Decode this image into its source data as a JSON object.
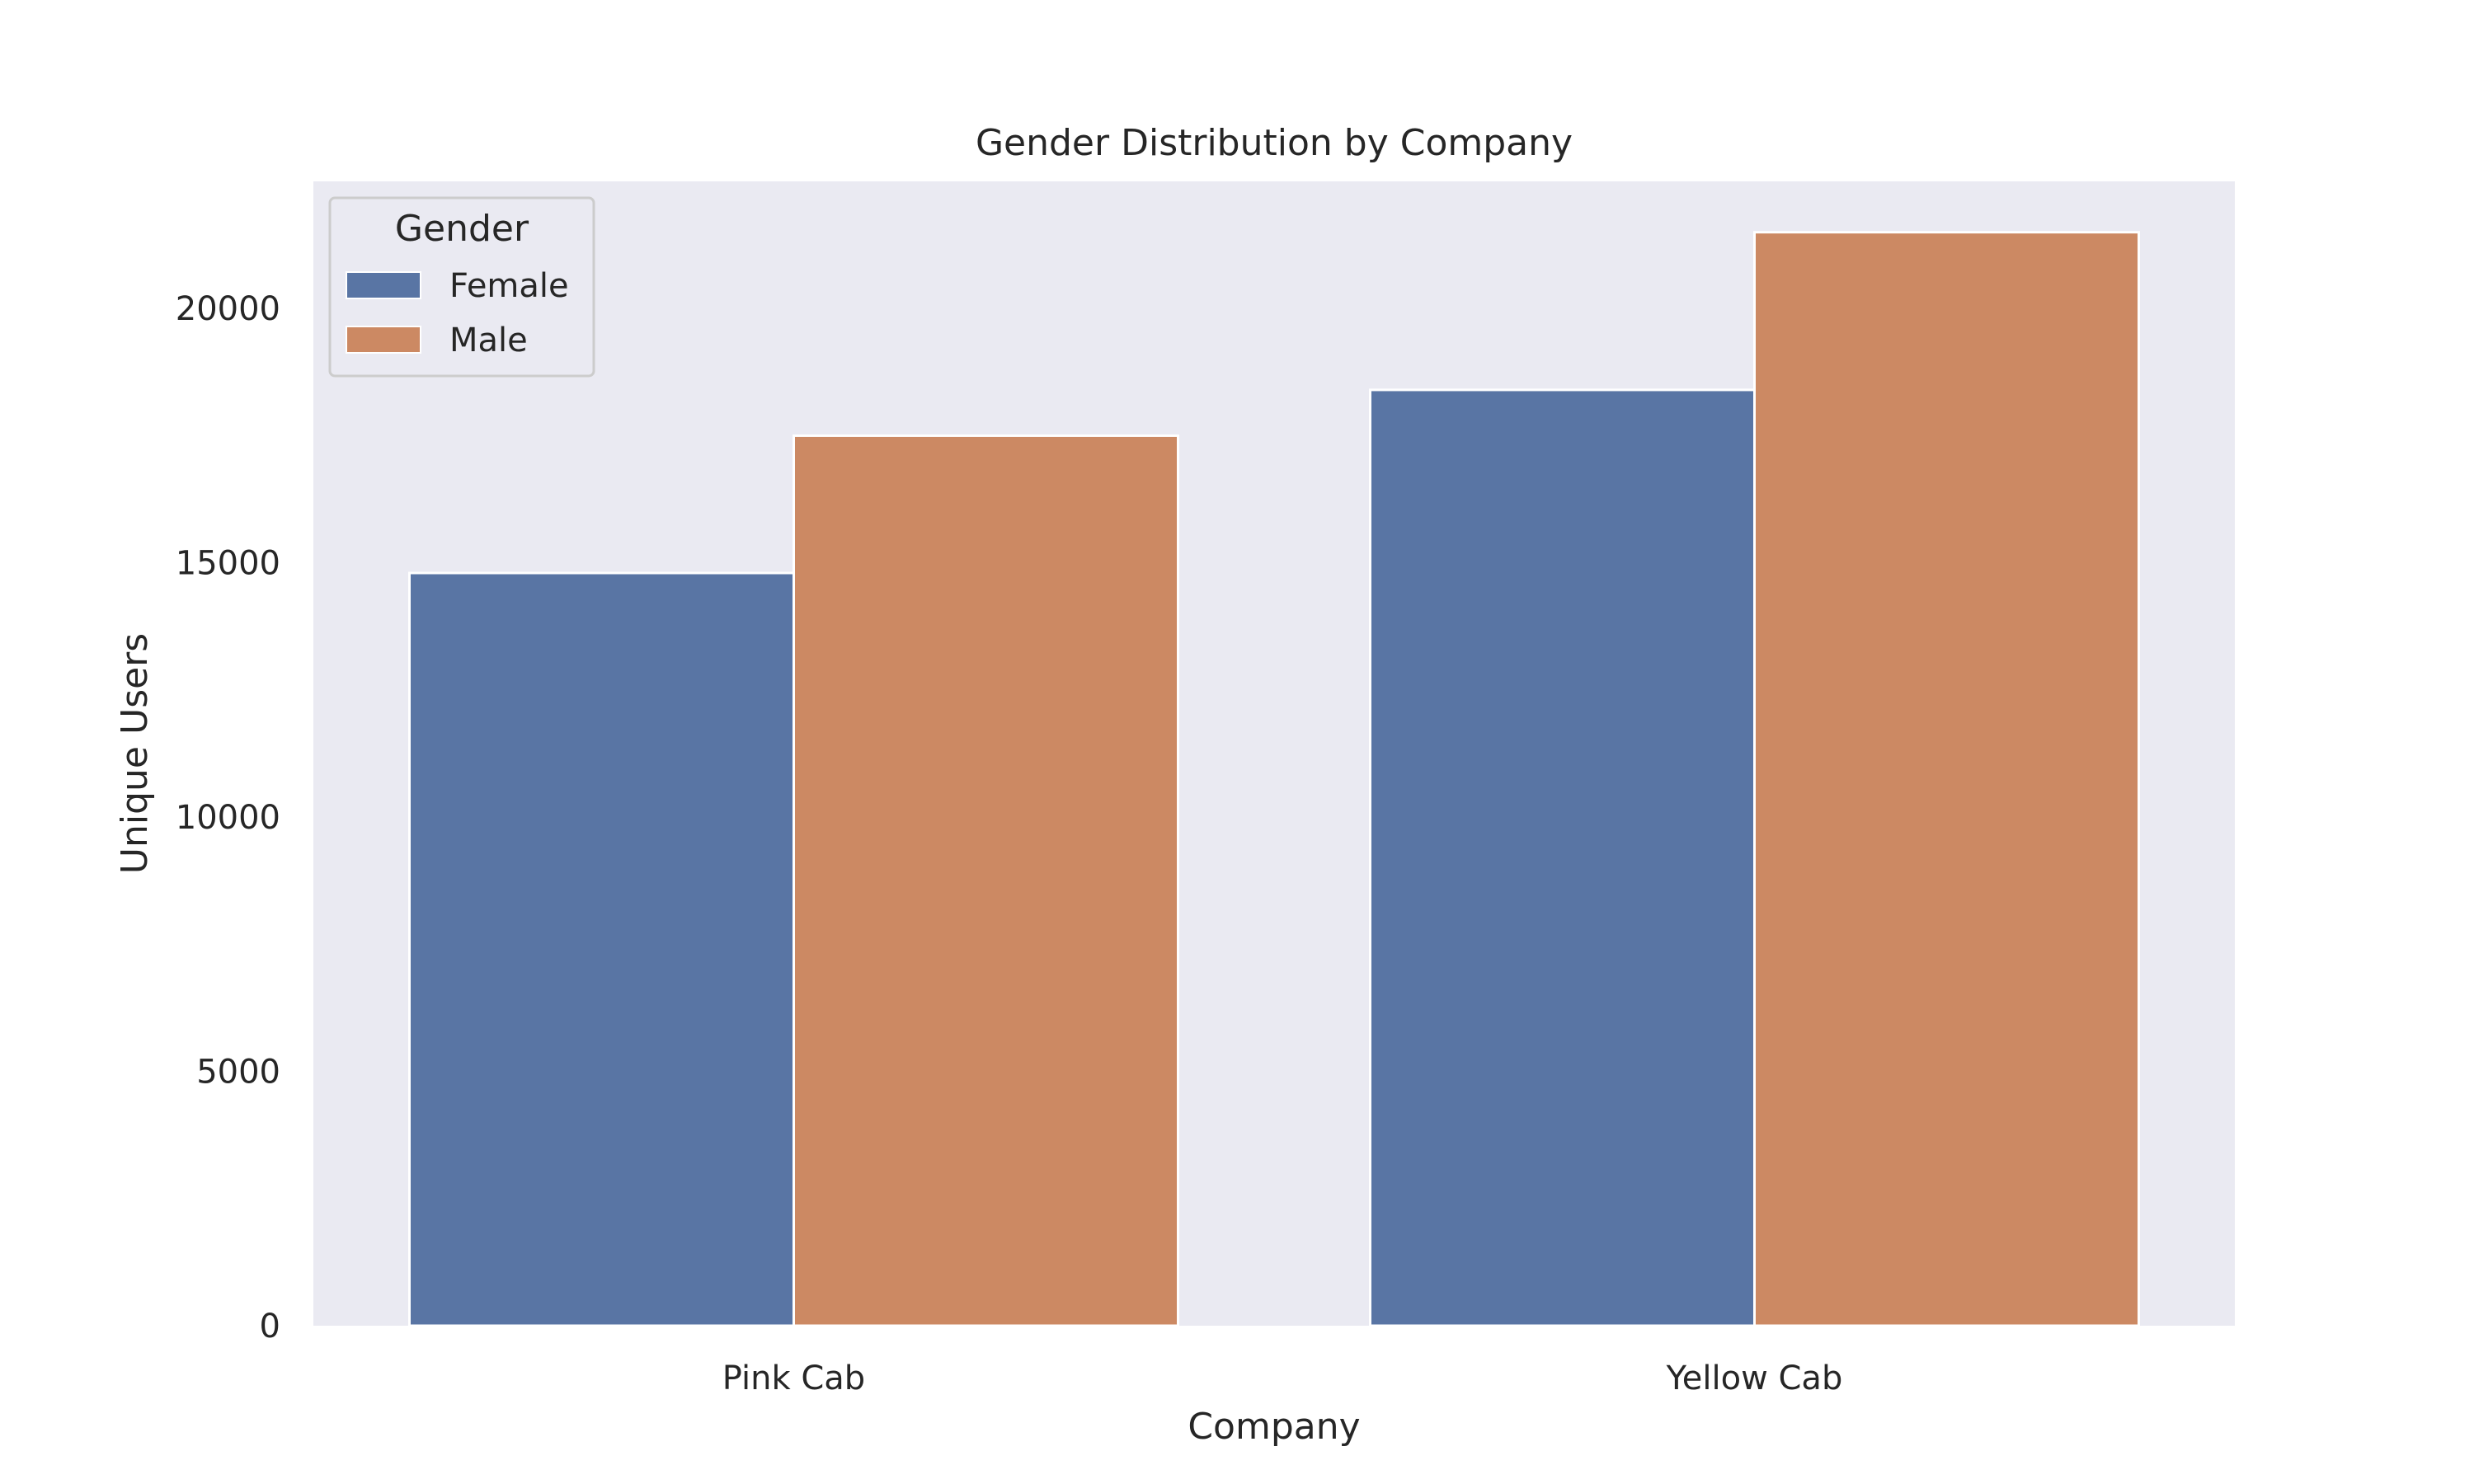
{
  "chart_data": {
    "type": "bar",
    "title": "Gender Distribution by Company",
    "xlabel": "Company",
    "ylabel": "Unique Users",
    "categories": [
      "Pink Cab",
      "Yellow Cab"
    ],
    "series": [
      {
        "name": "Female",
        "values": [
          14800,
          18400
        ],
        "color": "#5975a4"
      },
      {
        "name": "Male",
        "values": [
          17500,
          21500
        ],
        "color": "#cc8963"
      }
    ],
    "ylim": [
      0,
      22500
    ],
    "yticks": [
      0,
      5000,
      10000,
      15000,
      20000
    ],
    "grid": false,
    "legend": {
      "title": "Gender",
      "position": "top-left"
    },
    "plot_background": "#eaeaf2"
  }
}
